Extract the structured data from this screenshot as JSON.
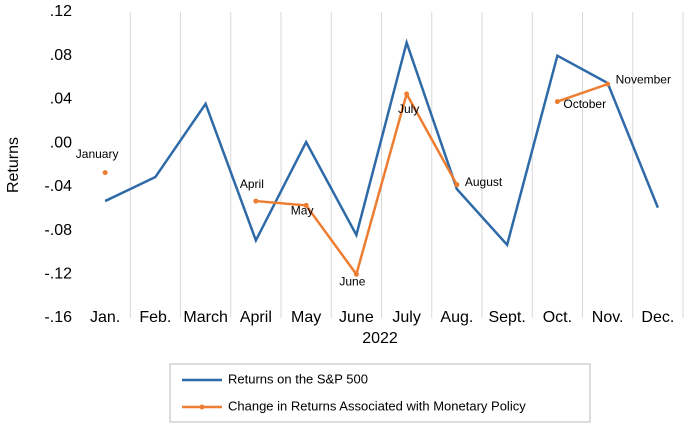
{
  "chart_data": {
    "type": "line",
    "x_label": "2022",
    "y_label": "Returns",
    "categories": [
      "Jan.",
      "Feb.",
      "March",
      "April",
      "May",
      "June",
      "July",
      "Aug.",
      "Sept.",
      "Oct.",
      "Nov.",
      "Dec."
    ],
    "series": [
      {
        "name": "Returns on the S&P 500",
        "color": "#2e6aa8",
        "values": [
          -0.053,
          -0.031,
          0.036,
          -0.089,
          0.001,
          -0.084,
          0.092,
          -0.042,
          -0.093,
          0.08,
          0.055,
          -0.059
        ]
      },
      {
        "name": "Change in Returns Associated with Monetary Policy",
        "color": "#ed7d31",
        "values": [
          -0.027,
          null,
          null,
          -0.053,
          -0.057,
          -0.12,
          0.045,
          -0.038,
          null,
          0.038,
          0.054,
          null
        ],
        "point_labels": [
          "January",
          null,
          null,
          "April",
          "May",
          "June",
          "July",
          "August",
          null,
          "October",
          "November",
          null
        ]
      }
    ],
    "ylim": [
      -0.16,
      0.12
    ],
    "yticks": [
      {
        "value": 0.12,
        "label": ".12"
      },
      {
        "value": 0.08,
        "label": ".08"
      },
      {
        "value": 0.04,
        "label": ".04"
      },
      {
        "value": 0,
        "label": ".00"
      },
      {
        "value": -0.04,
        "label": "-.04"
      },
      {
        "value": -0.08,
        "label": "-.08"
      },
      {
        "value": -0.12,
        "label": "-.12"
      },
      {
        "value": -0.16,
        "label": "-.16"
      }
    ],
    "grid": true
  }
}
